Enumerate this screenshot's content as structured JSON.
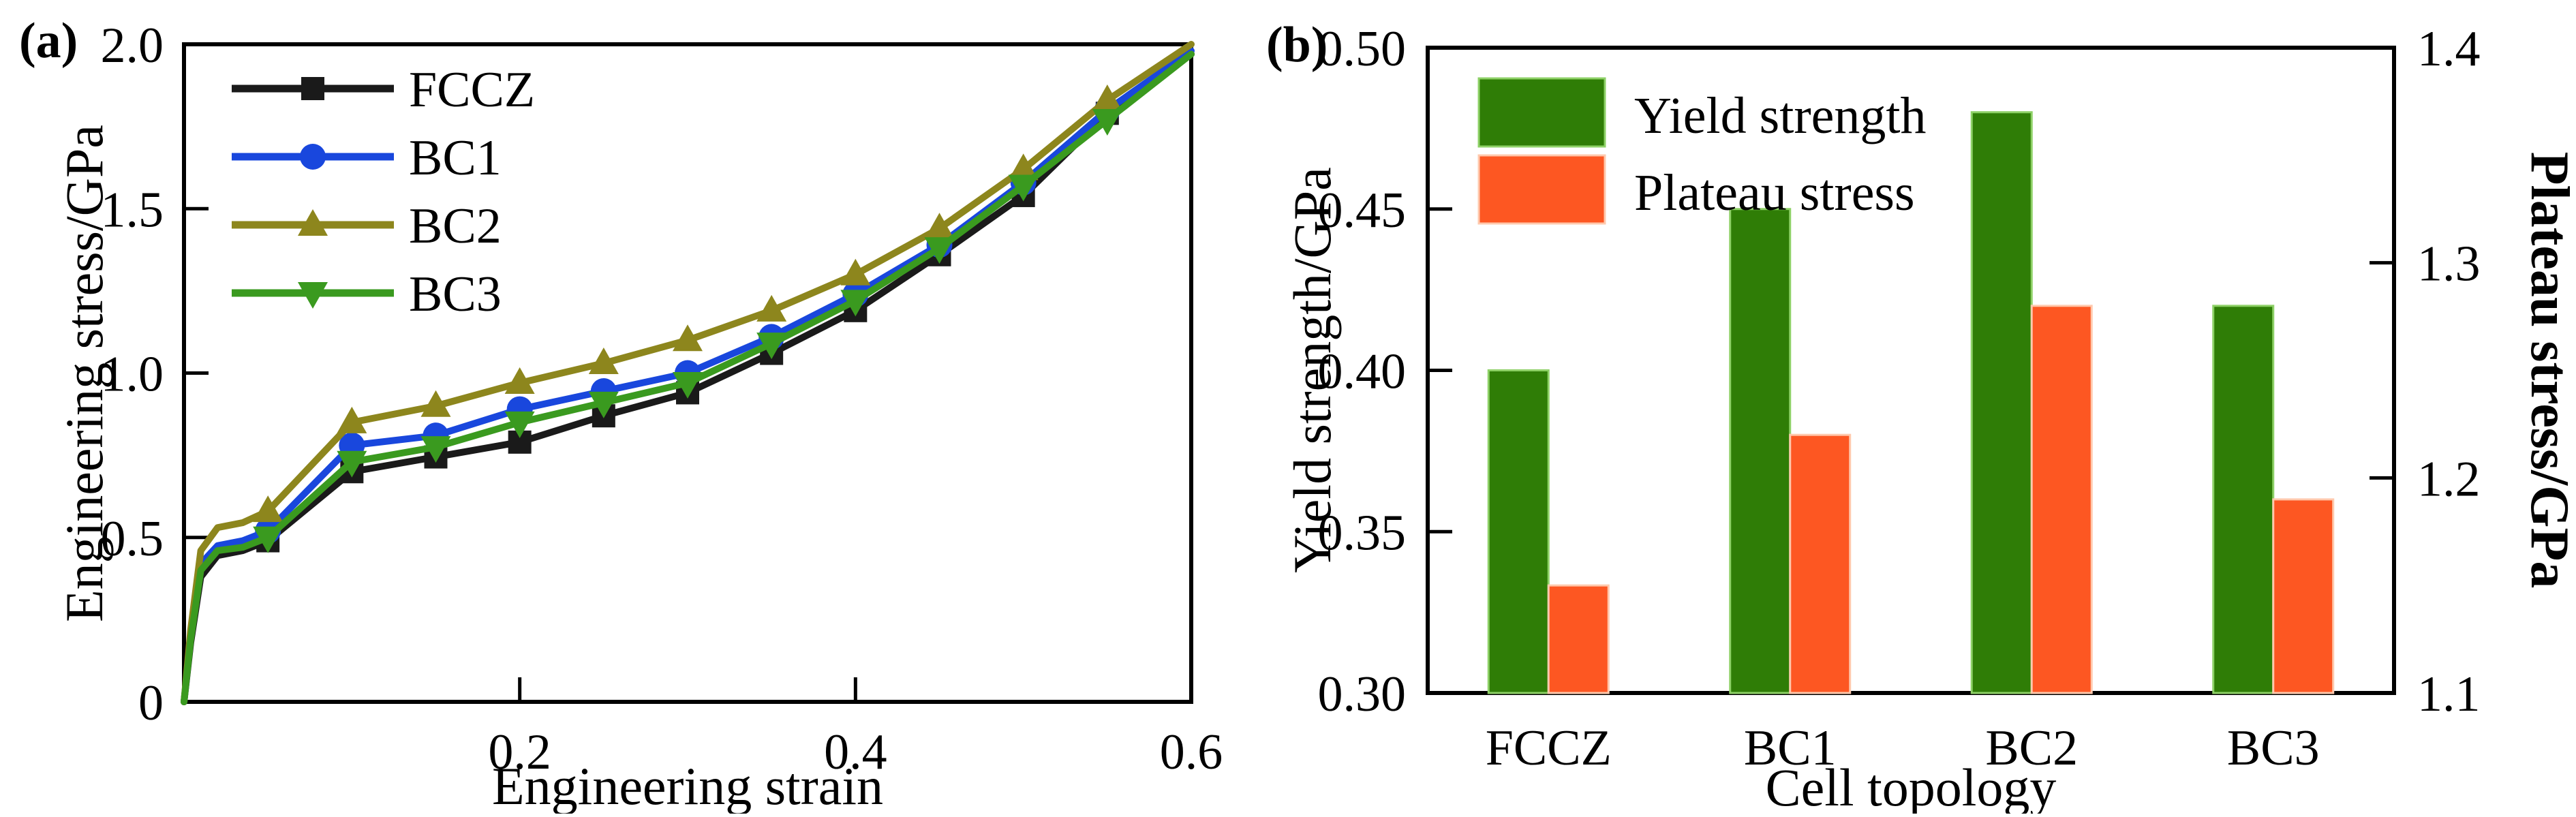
{
  "figure": {
    "panel_a_tag": "(a)",
    "panel_b_tag": "(b)",
    "background": "#ffffff",
    "frame_color": "#000000"
  },
  "chart_data": [
    {
      "id": "stress-strain-curves",
      "type": "line",
      "xlabel": "Engineering strain",
      "ylabel": "Engineering stress/GPa",
      "xlim": [
        0,
        0.6
      ],
      "ylim": [
        0,
        2.0
      ],
      "xticks": [
        0.2,
        0.4,
        0.6
      ],
      "xtick_labels": [
        "0.2",
        "0.4",
        "0.6"
      ],
      "yticks": [
        0,
        0.5,
        1.0,
        1.5,
        2.0
      ],
      "ytick_labels": [
        "0",
        "0.5",
        "1.0",
        "1.5",
        "2.0"
      ],
      "legend_position": "upper-left",
      "x": [
        0,
        0.004,
        0.01,
        0.02,
        0.035,
        0.05,
        0.1,
        0.15,
        0.2,
        0.25,
        0.3,
        0.35,
        0.4,
        0.45,
        0.5,
        0.55,
        0.6
      ],
      "marker_x": [
        0.05,
        0.1,
        0.15,
        0.2,
        0.25,
        0.3,
        0.35,
        0.4,
        0.45,
        0.5,
        0.55
      ],
      "series": [
        {
          "name": "FCCZ",
          "color": "#1a1a1a",
          "marker": "square",
          "values": [
            0,
            0.18,
            0.38,
            0.445,
            0.46,
            0.49,
            0.7,
            0.745,
            0.79,
            0.87,
            0.94,
            1.06,
            1.19,
            1.36,
            1.54,
            1.79,
            1.97
          ]
        },
        {
          "name": "BC1",
          "color": "#1947dd",
          "marker": "circle",
          "values": [
            0,
            0.2,
            0.42,
            0.475,
            0.49,
            0.52,
            0.78,
            0.81,
            0.89,
            0.945,
            1.0,
            1.11,
            1.24,
            1.39,
            1.58,
            1.8,
            1.98
          ]
        },
        {
          "name": "BC2",
          "color": "#8d861d",
          "marker": "triangle-up",
          "values": [
            0,
            0.22,
            0.46,
            0.53,
            0.545,
            0.58,
            0.85,
            0.9,
            0.97,
            1.03,
            1.1,
            1.19,
            1.3,
            1.44,
            1.62,
            1.83,
            2.0
          ]
        },
        {
          "name": "BC3",
          "color": "#3a9a1f",
          "marker": "triangle-down",
          "values": [
            0,
            0.19,
            0.4,
            0.46,
            0.47,
            0.5,
            0.73,
            0.775,
            0.85,
            0.91,
            0.97,
            1.09,
            1.22,
            1.38,
            1.57,
            1.77,
            1.97
          ]
        }
      ]
    },
    {
      "id": "yield-plateau-bars",
      "type": "bar",
      "xlabel": "Cell topology",
      "ylabel_left": "Yield strength/GPa",
      "ylabel_right": "Plateau stress/GPa",
      "categories": [
        "FCCZ",
        "BC1",
        "BC2",
        "BC3"
      ],
      "ylim_left": [
        0.3,
        0.5
      ],
      "ylim_right": [
        1.1,
        1.4
      ],
      "yticks_left": [
        0.3,
        0.35,
        0.4,
        0.45,
        0.5
      ],
      "ytick_labels_left": [
        "0.30",
        "0.35",
        "0.40",
        "0.45",
        "0.50"
      ],
      "yticks_right": [
        1.1,
        1.2,
        1.3,
        1.4
      ],
      "ytick_labels_right": [
        "1.1",
        "1.2",
        "1.3",
        "1.4"
      ],
      "legend_position": "upper-left",
      "series": [
        {
          "name": "Yield strength",
          "axis": "left",
          "color": "#2f7d06",
          "edge": "#8ed167",
          "values": [
            0.4,
            0.45,
            0.48,
            0.42
          ]
        },
        {
          "name": "Plateau stress",
          "axis": "right",
          "color": "#fd5722",
          "edge": "#ffc9ad",
          "values": [
            1.15,
            1.22,
            1.28,
            1.19
          ]
        }
      ]
    }
  ]
}
